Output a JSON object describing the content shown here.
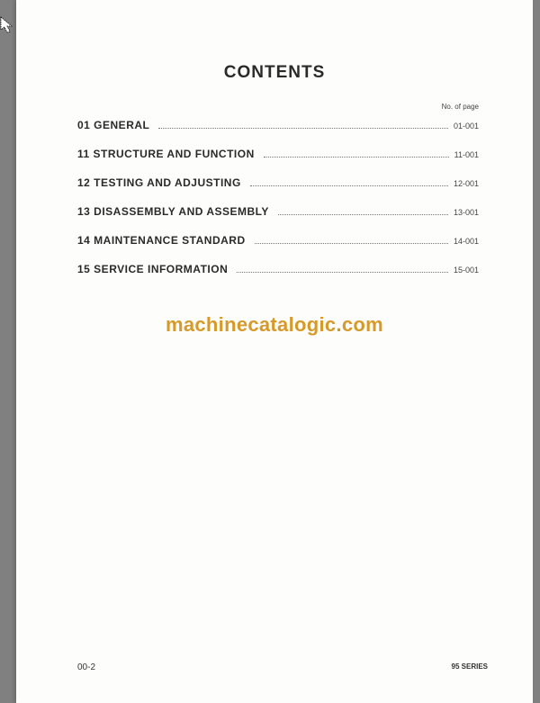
{
  "title": "CONTENTS",
  "title_fontsize": 19,
  "page_col_header": "No. of page",
  "page_col_header_fontsize": 8,
  "toc": {
    "label_fontsize": 12,
    "page_fontsize": 9,
    "rows": [
      {
        "label": "01 GENERAL",
        "page": "01-001"
      },
      {
        "label": "11 STRUCTURE  AND  FUNCTION",
        "page": "11-001"
      },
      {
        "label": "12 TESTING  AND  ADJUSTING",
        "page": "12-001"
      },
      {
        "label": "13 DISASSEMBLY  AND  ASSEMBLY",
        "page": "13-001"
      },
      {
        "label": "14 MAINTENANCE  STANDARD",
        "page": "14-001"
      },
      {
        "label": "15  SERVICE  INFORMATION",
        "page": "15-001"
      }
    ]
  },
  "watermark": {
    "text": "machinecatalogic.com",
    "color": "#d69a2a",
    "fontsize": 22
  },
  "footer": {
    "left": "00-2",
    "right": "95 SERIES",
    "left_fontsize": 10,
    "right_fontsize": 8
  },
  "colors": {
    "viewer_bg": "#808080",
    "page_bg": "#fdfdfb",
    "text_primary": "#2a2a2a",
    "text_secondary": "#444444",
    "dots": "#777777"
  }
}
